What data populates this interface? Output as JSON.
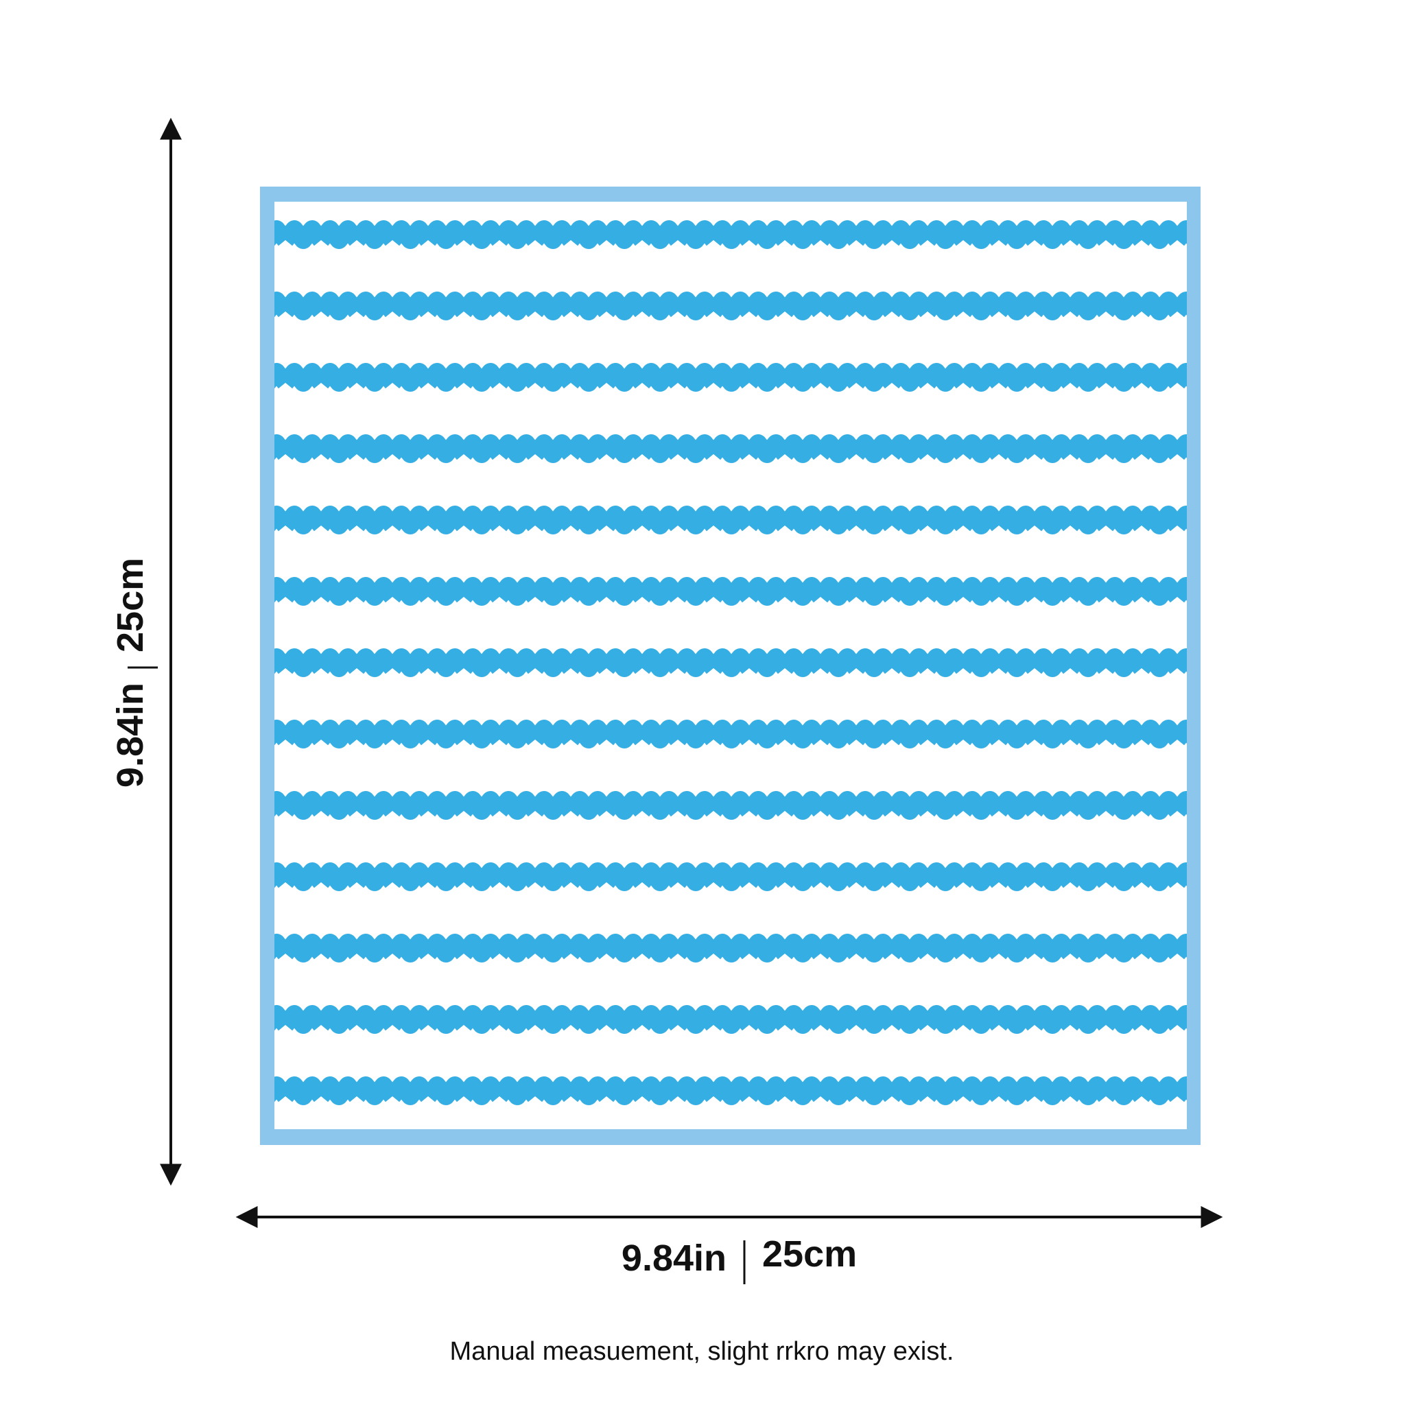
{
  "height_label": {
    "inches": "9.84in",
    "cm": "25cm"
  },
  "width_label": {
    "inches": "9.84in",
    "cm": "25cm"
  },
  "note": "Manual measuement, slight rrkro may exist."
}
